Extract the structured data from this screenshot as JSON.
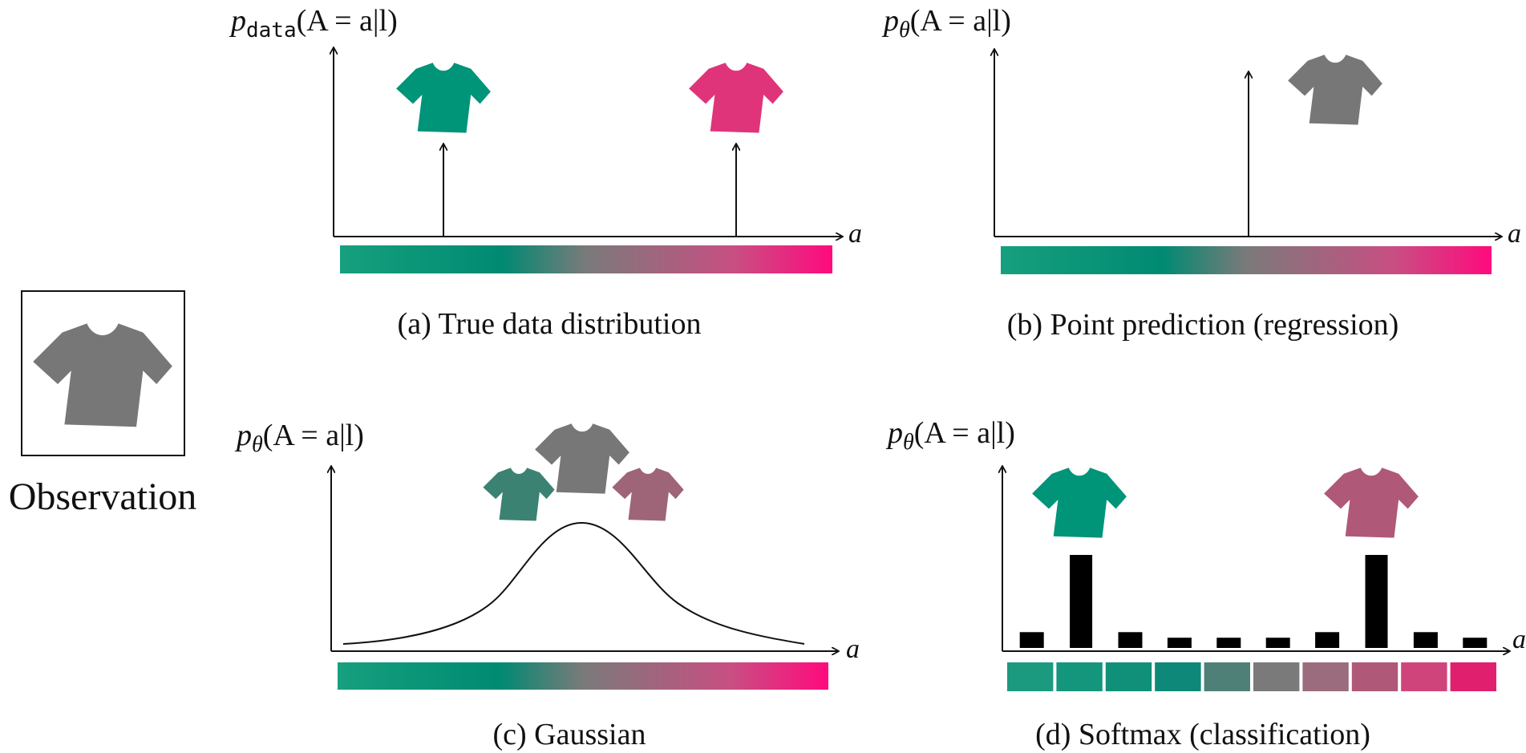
{
  "observation": {
    "label": "Observation"
  },
  "panels": {
    "a": {
      "ylabel_p": "p",
      "ylabel_sub": "data",
      "ylabel_rest": "(A = a|l)",
      "xlabel": "a",
      "caption": "(a) True data distribution"
    },
    "b": {
      "ylabel_p": "p",
      "ylabel_sub": "θ",
      "ylabel_rest": "(A = a|l)",
      "xlabel": "a",
      "caption": "(b) Point prediction (regression)"
    },
    "c": {
      "ylabel_p": "p",
      "ylabel_sub": "θ",
      "ylabel_rest": "(A = a|l)",
      "xlabel": "a",
      "caption": "(c) Gaussian"
    },
    "d": {
      "ylabel_p": "p",
      "ylabel_sub": "θ",
      "ylabel_rest": "(A = a|l)",
      "xlabel": "a",
      "caption": "(d) Softmax (classification)"
    }
  },
  "colors": {
    "green": "#009478",
    "pink": "#e0347a",
    "gray": "#777777",
    "dark_green": "#3c8272",
    "mauve": "#9e6478",
    "rose": "#b05878"
  },
  "softmax": {
    "bar_heights": [
      0.17,
      1.0,
      0.17,
      0.11,
      0.11,
      0.11,
      0.17,
      1.0,
      0.17,
      0.11
    ],
    "bin_colors": [
      "#1c9a80",
      "#14967c",
      "#109078",
      "#0e8878",
      "#4e8078",
      "#7a7a7a",
      "#9a6c7e",
      "#b05878",
      "#d0447c",
      "#e0206e"
    ]
  }
}
